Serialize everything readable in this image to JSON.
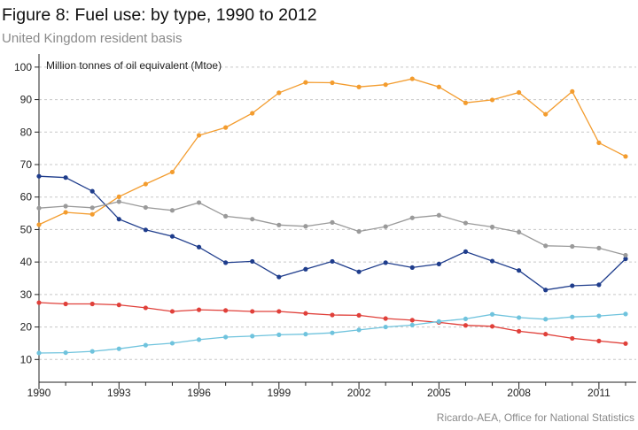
{
  "header": {
    "title": "Figure 8: Fuel use: by type, 1990 to 2012",
    "subtitle": "United Kingdom resident basis"
  },
  "footer": {
    "source": "Ricardo-AEA, Office for National Statistics"
  },
  "chart_data": {
    "type": "line",
    "ylabel": "Million tonnes of oil equivalent (Mtoe)",
    "xlabel": "",
    "x": [
      1990,
      1991,
      1992,
      1993,
      1994,
      1995,
      1996,
      1997,
      1998,
      1999,
      2000,
      2001,
      2002,
      2003,
      2004,
      2005,
      2006,
      2007,
      2008,
      2009,
      2010,
      2011,
      2012
    ],
    "x_ticks": [
      1990,
      1993,
      1996,
      1999,
      2002,
      2005,
      2008,
      2011
    ],
    "y_ticks": [
      10,
      20,
      30,
      40,
      50,
      60,
      70,
      80,
      90,
      100
    ],
    "xlim": [
      1990,
      2012.2
    ],
    "ylim": [
      3,
      103.5
    ],
    "grid": "horizontal-dashed",
    "series": [
      {
        "color": "#f39c2e",
        "values": [
          51.5,
          55.3,
          54.7,
          60.1,
          64.0,
          67.7,
          79.0,
          81.4,
          85.8,
          92.1,
          95.3,
          95.2,
          93.9,
          94.6,
          96.4,
          93.9,
          89.0,
          89.9,
          92.2,
          85.5,
          92.5,
          76.7,
          72.5
        ]
      },
      {
        "color": "#1f3d8c",
        "values": [
          66.4,
          66.0,
          61.8,
          53.2,
          49.9,
          47.9,
          44.6,
          39.8,
          40.2,
          35.4,
          37.8,
          40.2,
          37.0,
          39.8,
          38.3,
          39.4,
          43.2,
          40.3,
          37.4,
          31.4,
          32.7,
          33.0,
          41.0
        ]
      },
      {
        "color": "#9a9a9a",
        "values": [
          56.6,
          57.2,
          56.7,
          58.6,
          56.8,
          55.9,
          58.3,
          54.1,
          53.2,
          51.4,
          51.0,
          52.2,
          49.4,
          50.9,
          53.6,
          54.4,
          52.0,
          50.8,
          49.2,
          45.0,
          44.8,
          44.3,
          42.1
        ]
      },
      {
        "color": "#e0403a",
        "values": [
          27.5,
          27.1,
          27.1,
          26.8,
          25.9,
          24.8,
          25.3,
          25.1,
          24.8,
          24.8,
          24.2,
          23.7,
          23.6,
          22.6,
          22.1,
          21.4,
          20.5,
          20.2,
          18.7,
          17.8,
          16.5,
          15.7,
          14.9
        ]
      },
      {
        "color": "#6fc3dd",
        "values": [
          12.0,
          12.1,
          12.5,
          13.3,
          14.4,
          15.0,
          16.1,
          16.9,
          17.2,
          17.6,
          17.8,
          18.2,
          19.1,
          20.0,
          20.6,
          21.7,
          22.5,
          23.9,
          22.9,
          22.4,
          23.1,
          23.4,
          24.0
        ]
      }
    ]
  }
}
